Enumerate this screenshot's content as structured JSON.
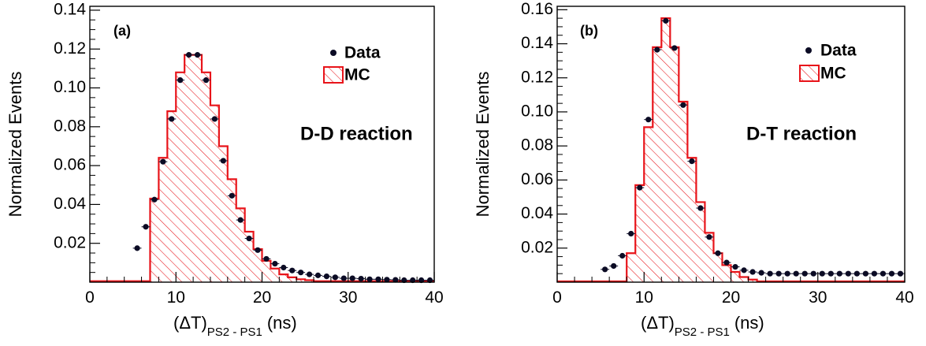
{
  "colors": {
    "mc": "#e8141a",
    "data": "#0b0b24"
  },
  "chart_data": [
    {
      "type": "histogram",
      "panel_label": "(a)",
      "annotation": "D-D reaction",
      "ylabel": "Normalized Events",
      "xlabel_main": "(ΔT)",
      "xlabel_sub": "PS2 - PS1",
      "xlabel_unit": "(ns)",
      "xlim": [
        0,
        40
      ],
      "ylim": [
        0,
        0.142
      ],
      "x_ticks": [
        0,
        10,
        20,
        30,
        40
      ],
      "x_tick_labels": [
        "0",
        "10",
        "20",
        "30",
        "40"
      ],
      "y_ticks": [
        0.02,
        0.04,
        0.06,
        0.08,
        0.1,
        0.12,
        0.14
      ],
      "y_tick_labels": [
        "0.02",
        "0.04",
        "0.06",
        "0.08",
        "0.10",
        "0.12",
        "0.14"
      ],
      "legend": {
        "data_label": "Data",
        "mc_label": "MC",
        "position": "top-right"
      },
      "bin_edges": [
        0,
        7,
        8,
        9,
        10,
        11,
        12,
        13,
        14,
        15,
        16,
        17,
        18,
        19,
        20,
        21,
        22,
        23,
        24,
        25,
        26,
        40
      ],
      "mc_values": [
        0.0005,
        0.043,
        0.064,
        0.088,
        0.108,
        0.117,
        0.117,
        0.108,
        0.091,
        0.07,
        0.053,
        0.038,
        0.026,
        0.017,
        0.011,
        0.007,
        0.004,
        0.0025,
        0.0015,
        0.001,
        0.0005
      ],
      "data_x": [
        5.5,
        6.5,
        7.5,
        8.5,
        9.5,
        10.5,
        11.5,
        12.5,
        13.5,
        14.5,
        15.5,
        16.5,
        17.5,
        18.5,
        19.5,
        20.5,
        21.5,
        22.5,
        23.5,
        24.5,
        25.5,
        26.5,
        27.5,
        28.5,
        29.5,
        30.5,
        31.5,
        32.5,
        33.5,
        34.5,
        35.5,
        36.5,
        37.5,
        38.5,
        39.5
      ],
      "data_y": [
        0.0175,
        0.0285,
        0.0425,
        0.062,
        0.084,
        0.104,
        0.117,
        0.117,
        0.104,
        0.084,
        0.0625,
        0.0445,
        0.032,
        0.0225,
        0.0165,
        0.012,
        0.0095,
        0.0075,
        0.006,
        0.005,
        0.004,
        0.0035,
        0.003,
        0.0025,
        0.002,
        0.002,
        0.0018,
        0.0015,
        0.0015,
        0.0013,
        0.0012,
        0.001,
        0.001,
        0.001,
        0.001
      ]
    },
    {
      "type": "histogram",
      "panel_label": "(b)",
      "annotation": "D-T reaction",
      "ylabel": "Normalized Events",
      "xlabel_main": "(ΔT)",
      "xlabel_sub": "PS2 - PS1",
      "xlabel_unit": "(ns)",
      "xlim": [
        0,
        40
      ],
      "ylim": [
        0,
        0.162
      ],
      "x_ticks": [
        0,
        10,
        20,
        30,
        40
      ],
      "x_tick_labels": [
        "0",
        "10",
        "20",
        "30",
        "40"
      ],
      "y_ticks": [
        0.02,
        0.04,
        0.06,
        0.08,
        0.1,
        0.12,
        0.14,
        0.16
      ],
      "y_tick_labels": [
        "0.02",
        "0.04",
        "0.06",
        "0.08",
        "0.10",
        "0.12",
        "0.14",
        "0.16"
      ],
      "legend": {
        "data_label": "Data",
        "mc_label": "MC",
        "position": "top-right"
      },
      "bin_edges": [
        0,
        8,
        9,
        10,
        11,
        12,
        13,
        14,
        15,
        16,
        17,
        18,
        19,
        20,
        21,
        22,
        23,
        40
      ],
      "mc_values": [
        0.0005,
        0.017,
        0.057,
        0.091,
        0.138,
        0.155,
        0.138,
        0.106,
        0.073,
        0.047,
        0.029,
        0.017,
        0.01,
        0.006,
        0.003,
        0.0015,
        0.0005
      ],
      "data_x": [
        5.5,
        6.5,
        7.5,
        8.5,
        9.5,
        10.5,
        11.5,
        12.5,
        13.5,
        14.5,
        15.5,
        16.5,
        17.5,
        18.5,
        19.5,
        20.5,
        21.5,
        22.5,
        23.5,
        24.5,
        25.5,
        26.5,
        27.5,
        28.5,
        29.5,
        30.5,
        31.5,
        32.5,
        33.5,
        34.5,
        35.5,
        36.5,
        37.5,
        38.5,
        39.5
      ],
      "data_y": [
        0.0075,
        0.0095,
        0.0155,
        0.0285,
        0.0555,
        0.0955,
        0.1365,
        0.1535,
        0.1375,
        0.104,
        0.071,
        0.0435,
        0.0265,
        0.017,
        0.0115,
        0.009,
        0.007,
        0.006,
        0.0055,
        0.005,
        0.005,
        0.005,
        0.005,
        0.005,
        0.005,
        0.005,
        0.005,
        0.005,
        0.005,
        0.005,
        0.005,
        0.005,
        0.005,
        0.005,
        0.005
      ]
    }
  ]
}
